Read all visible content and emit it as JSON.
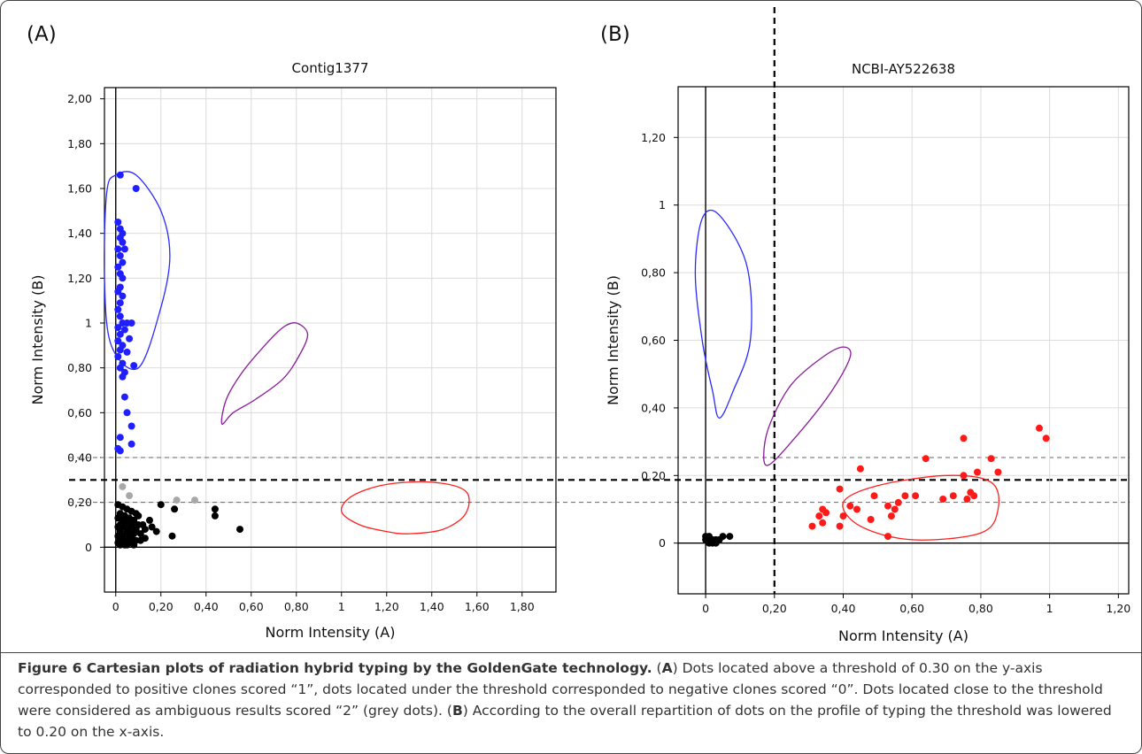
{
  "panel_labels": [
    "(A)",
    "(B)"
  ],
  "caption": {
    "title": "Figure 6 Cartesian plots of radiation hybrid typing by the GoldenGate technology.",
    "p1": " Dots located above a threshold of 0.30 on the y-axis corresponded to positive clones scored “1”, dots located under the threshold corresponded to negative clones scored “0”. Dots located close to the threshold were considered as ambiguous results scored “2” (grey dots).",
    "p2": " According to the overall repartition of dots on the profile of typing the threshold was lowered to 0.20 on the x-axis.",
    "refA": "A",
    "refB": "B"
  },
  "colors": {
    "blue": "#1f1fff",
    "black": "#000000",
    "grey": "#a8a8a8",
    "red": "#ff1a1a",
    "purple": "#8a1a9a",
    "ellipse_blue": "#2a2aff",
    "ellipse_red": "#ff2020"
  },
  "chart_data": [
    {
      "type": "scatter",
      "title": "Contig1377",
      "xlabel": "Norm Intensity (A)",
      "ylabel": "Norm Intensity (B)",
      "xlim": [
        -0.05,
        1.95
      ],
      "ylim": [
        -0.2,
        2.05
      ],
      "x_ticks": [
        "0",
        "0,20",
        "0,40",
        "0,60",
        "0,80",
        "1",
        "1,20",
        "1,40",
        "1,60",
        "1,80"
      ],
      "y_ticks": [
        "0",
        "0,20",
        "0,40",
        "0,60",
        "0,80",
        "1",
        "1,20",
        "1,40",
        "1,60",
        "1,80",
        "2,00"
      ],
      "grid": true,
      "thresholds": [
        {
          "axis": "y",
          "value": 0.4,
          "style": "dashed-thin",
          "label": "0,40"
        },
        {
          "axis": "y",
          "value": 0.3,
          "style": "dashed-bold",
          "label": "0,30"
        },
        {
          "axis": "y",
          "value": 0.2,
          "style": "dashed-thin",
          "label": "0,20"
        }
      ],
      "series": [
        {
          "color": "blue",
          "points": [
            [
              0.02,
              1.66
            ],
            [
              0.09,
              1.6
            ],
            [
              0.01,
              1.45
            ],
            [
              0.02,
              1.42
            ],
            [
              0.03,
              1.4
            ],
            [
              0.02,
              1.38
            ],
            [
              0.03,
              1.36
            ],
            [
              0.01,
              1.33
            ],
            [
              0.04,
              1.33
            ],
            [
              0.02,
              1.3
            ],
            [
              0.03,
              1.27
            ],
            [
              0.01,
              1.25
            ],
            [
              0.02,
              1.22
            ],
            [
              0.03,
              1.2
            ],
            [
              0.02,
              1.16
            ],
            [
              0.01,
              1.14
            ],
            [
              0.03,
              1.12
            ],
            [
              0.02,
              1.09
            ],
            [
              0.01,
              1.06
            ],
            [
              0.02,
              1.03
            ],
            [
              0.03,
              1.0
            ],
            [
              0.05,
              1.0
            ],
            [
              0.07,
              1.0
            ],
            [
              0.01,
              0.98
            ],
            [
              0.04,
              0.97
            ],
            [
              0.02,
              0.95
            ],
            [
              0.06,
              0.93
            ],
            [
              0.01,
              0.92
            ],
            [
              0.03,
              0.9
            ],
            [
              0.02,
              0.88
            ],
            [
              0.05,
              0.87
            ],
            [
              0.01,
              0.85
            ],
            [
              0.03,
              0.82
            ],
            [
              0.02,
              0.8
            ],
            [
              0.08,
              0.81
            ],
            [
              0.04,
              0.78
            ],
            [
              0.03,
              0.76
            ],
            [
              0.04,
              0.67
            ],
            [
              0.05,
              0.6
            ],
            [
              0.07,
              0.54
            ],
            [
              0.02,
              0.49
            ],
            [
              0.07,
              0.46
            ],
            [
              0.01,
              0.44
            ],
            [
              0.02,
              0.43
            ]
          ]
        },
        {
          "color": "grey",
          "points": [
            [
              0.03,
              0.27
            ],
            [
              0.06,
              0.23
            ],
            [
              0.27,
              0.21
            ],
            [
              0.35,
              0.21
            ]
          ]
        },
        {
          "color": "black",
          "points": [
            [
              0.01,
              0.19
            ],
            [
              0.03,
              0.18
            ],
            [
              0.05,
              0.17
            ],
            [
              0.07,
              0.16
            ],
            [
              0.09,
              0.15
            ],
            [
              0.02,
              0.15
            ],
            [
              0.04,
              0.14
            ],
            [
              0.06,
              0.13
            ],
            [
              0.01,
              0.13
            ],
            [
              0.03,
              0.12
            ],
            [
              0.08,
              0.12
            ],
            [
              0.05,
              0.11
            ],
            [
              0.02,
              0.1
            ],
            [
              0.04,
              0.1
            ],
            [
              0.07,
              0.1
            ],
            [
              0.1,
              0.1
            ],
            [
              0.12,
              0.1
            ],
            [
              0.01,
              0.09
            ],
            [
              0.03,
              0.09
            ],
            [
              0.06,
              0.08
            ],
            [
              0.09,
              0.08
            ],
            [
              0.02,
              0.07
            ],
            [
              0.05,
              0.07
            ],
            [
              0.08,
              0.06
            ],
            [
              0.11,
              0.06
            ],
            [
              0.01,
              0.05
            ],
            [
              0.03,
              0.05
            ],
            [
              0.06,
              0.05
            ],
            [
              0.04,
              0.04
            ],
            [
              0.07,
              0.04
            ],
            [
              0.02,
              0.03
            ],
            [
              0.05,
              0.03
            ],
            [
              0.09,
              0.03
            ],
            [
              0.01,
              0.02
            ],
            [
              0.03,
              0.02
            ],
            [
              0.06,
              0.02
            ],
            [
              0.04,
              0.01
            ],
            [
              0.08,
              0.01
            ],
            [
              0.02,
              0.01
            ],
            [
              0.05,
              0.01
            ],
            [
              0.11,
              0.03
            ],
            [
              0.13,
              0.08
            ],
            [
              0.15,
              0.12
            ],
            [
              0.16,
              0.09
            ],
            [
              0.18,
              0.07
            ],
            [
              0.2,
              0.19
            ],
            [
              0.25,
              0.05
            ],
            [
              0.26,
              0.17
            ],
            [
              0.44,
              0.17
            ],
            [
              0.44,
              0.14
            ],
            [
              0.55,
              0.08
            ],
            [
              0.1,
              0.14
            ],
            [
              0.13,
              0.04
            ]
          ]
        }
      ],
      "ellipses": [
        {
          "color": "blue",
          "path": [
            [
              0.09,
              1.66
            ],
            [
              0.2,
              1.5
            ],
            [
              0.24,
              1.3
            ],
            [
              0.2,
              1.07
            ],
            [
              0.1,
              0.8
            ],
            [
              -0.02,
              0.9
            ],
            [
              -0.05,
              1.2
            ],
            [
              -0.04,
              1.58
            ],
            [
              0.0,
              1.66
            ]
          ]
        },
        {
          "color": "purple",
          "path": [
            [
              0.47,
              0.55
            ],
            [
              0.52,
              0.6
            ],
            [
              0.62,
              0.66
            ],
            [
              0.74,
              0.75
            ],
            [
              0.81,
              0.85
            ],
            [
              0.85,
              0.95
            ],
            [
              0.8,
              1.0
            ],
            [
              0.74,
              0.98
            ],
            [
              0.66,
              0.9
            ],
            [
              0.56,
              0.78
            ],
            [
              0.49,
              0.66
            ]
          ]
        },
        {
          "color": "red",
          "path": [
            [
              1.3,
              0.06
            ],
            [
              1.45,
              0.08
            ],
            [
              1.55,
              0.15
            ],
            [
              1.55,
              0.25
            ],
            [
              1.4,
              0.29
            ],
            [
              1.2,
              0.28
            ],
            [
              1.05,
              0.23
            ],
            [
              1.0,
              0.16
            ],
            [
              1.08,
              0.1
            ],
            [
              1.2,
              0.07
            ]
          ]
        }
      ]
    },
    {
      "type": "scatter",
      "title": "NCBI-AY522638",
      "xlabel": "Norm Intensity (A)",
      "ylabel": "Norm Intensity (B)",
      "xlim": [
        -0.08,
        1.23
      ],
      "ylim": [
        -0.15,
        1.35
      ],
      "x_ticks": [
        "0",
        "0,20",
        "0,40",
        "0,60",
        "0,80",
        "1",
        "1,20"
      ],
      "y_ticks": [
        "0",
        "0,20",
        "0,40",
        "0,60",
        "0,80",
        "1",
        "1,20"
      ],
      "grid": true,
      "thresholds": [
        {
          "axis": "x",
          "value": 0.2,
          "style": "dashed-bold"
        }
      ],
      "series": [
        {
          "color": "black",
          "points": [
            [
              0.0,
              0.02
            ],
            [
              0.02,
              0.01
            ],
            [
              0.01,
              0.0
            ],
            [
              0.03,
              0.01
            ],
            [
              0.05,
              0.02
            ],
            [
              0.07,
              0.02
            ],
            [
              0.02,
              0.0
            ],
            [
              0.0,
              0.01
            ],
            [
              0.04,
              0.01
            ],
            [
              0.01,
              0.02
            ],
            [
              0.03,
              0.0
            ]
          ]
        },
        {
          "color": "red",
          "points": [
            [
              0.31,
              0.05
            ],
            [
              0.33,
              0.08
            ],
            [
              0.34,
              0.06
            ],
            [
              0.35,
              0.09
            ],
            [
              0.34,
              0.1
            ],
            [
              0.39,
              0.05
            ],
            [
              0.39,
              0.16
            ],
            [
              0.4,
              0.08
            ],
            [
              0.42,
              0.11
            ],
            [
              0.44,
              0.1
            ],
            [
              0.45,
              0.22
            ],
            [
              0.48,
              0.07
            ],
            [
              0.49,
              0.14
            ],
            [
              0.53,
              0.11
            ],
            [
              0.54,
              0.08
            ],
            [
              0.55,
              0.1
            ],
            [
              0.56,
              0.12
            ],
            [
              0.53,
              0.02
            ],
            [
              0.58,
              0.14
            ],
            [
              0.61,
              0.14
            ],
            [
              0.64,
              0.25
            ],
            [
              0.69,
              0.13
            ],
            [
              0.72,
              0.14
            ],
            [
              0.75,
              0.2
            ],
            [
              0.75,
              0.31
            ],
            [
              0.76,
              0.13
            ],
            [
              0.77,
              0.15
            ],
            [
              0.78,
              0.14
            ],
            [
              0.79,
              0.21
            ],
            [
              0.83,
              0.25
            ],
            [
              0.85,
              0.21
            ],
            [
              0.97,
              0.34
            ],
            [
              0.99,
              0.31
            ]
          ]
        }
      ],
      "ellipses": [
        {
          "color": "blue",
          "path": [
            [
              0.04,
              0.37
            ],
            [
              0.08,
              0.45
            ],
            [
              0.13,
              0.6
            ],
            [
              0.12,
              0.82
            ],
            [
              0.04,
              0.97
            ],
            [
              -0.01,
              0.96
            ],
            [
              -0.03,
              0.8
            ],
            [
              -0.01,
              0.6
            ],
            [
              0.02,
              0.45
            ]
          ]
        },
        {
          "color": "purple",
          "path": [
            [
              0.18,
              0.23
            ],
            [
              0.25,
              0.3
            ],
            [
              0.36,
              0.44
            ],
            [
              0.42,
              0.55
            ],
            [
              0.4,
              0.58
            ],
            [
              0.34,
              0.55
            ],
            [
              0.25,
              0.47
            ],
            [
              0.19,
              0.36
            ],
            [
              0.17,
              0.28
            ]
          ]
        },
        {
          "color": "red",
          "path": [
            [
              0.85,
              0.1
            ],
            [
              0.8,
              0.03
            ],
            [
              0.6,
              0.01
            ],
            [
              0.45,
              0.05
            ],
            [
              0.4,
              0.12
            ],
            [
              0.5,
              0.17
            ],
            [
              0.7,
              0.2
            ],
            [
              0.83,
              0.18
            ]
          ]
        }
      ]
    }
  ]
}
